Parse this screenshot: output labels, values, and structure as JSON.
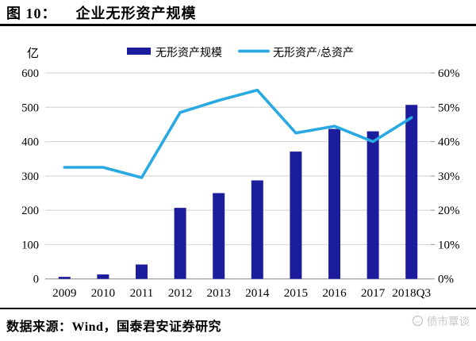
{
  "header": {
    "figure_label": "图 10：",
    "title": "企业无形资产规模"
  },
  "footer": {
    "source": "数据来源：Wind，国泰君安证券研究"
  },
  "watermark": {
    "label": "债市覃谈",
    "icon": "moon-face-logo"
  },
  "colors": {
    "bar": "#1c1d9d",
    "line": "#29a9e1",
    "grid": "#d9d9d9",
    "axis": "#a6a6a6",
    "text": "#000000",
    "watermark": "#c6c6c6"
  },
  "chart_data": {
    "type": "bar",
    "title": "企业无形资产规模",
    "categories": [
      "2009",
      "2010",
      "2011",
      "2012",
      "2013",
      "2014",
      "2015",
      "2016",
      "2017",
      "2018Q3"
    ],
    "series": [
      {
        "name": "无形资产规模",
        "type": "bar",
        "axis": "left",
        "unit": "亿",
        "values": [
          6,
          13,
          42,
          207,
          250,
          287,
          371,
          437,
          430,
          507
        ]
      },
      {
        "name": "无形资产/总资产",
        "type": "line",
        "axis": "right",
        "unit": "%",
        "values": [
          32.5,
          32.5,
          29.5,
          48.5,
          52,
          55,
          42.5,
          44.5,
          40,
          47
        ]
      }
    ],
    "left_axis": {
      "label": "亿",
      "min": 0,
      "max": 600,
      "step": 100,
      "ticks": [
        "0",
        "100",
        "200",
        "300",
        "400",
        "500",
        "600"
      ]
    },
    "right_axis": {
      "min": 0,
      "max": 60,
      "step": 10,
      "ticks": [
        "0%",
        "10%",
        "20%",
        "30%",
        "40%",
        "50%",
        "60%"
      ]
    },
    "grid": true,
    "legend_position": "top"
  }
}
